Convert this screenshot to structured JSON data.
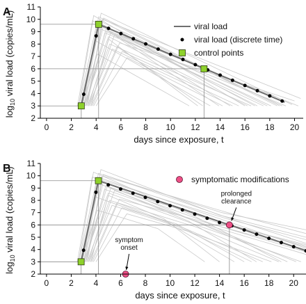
{
  "chart_data": [
    {
      "type": "line",
      "panel_label": "A",
      "xlabel": "days since exposure, t",
      "ylabel_prefix": "log",
      "ylabel_sub": "10",
      "ylabel_rest": " viral load (copies/mL)",
      "xlim": [
        -0.5,
        20.7
      ],
      "ylim": [
        2,
        11
      ],
      "xticks": [
        0,
        2,
        4,
        6,
        8,
        10,
        12,
        14,
        16,
        18,
        20
      ],
      "yticks": [
        2,
        3,
        4,
        5,
        6,
        7,
        8,
        9,
        10,
        11
      ],
      "grid": false,
      "legend": {
        "position": "top-right",
        "entries": [
          {
            "label": "viral load",
            "marker": "line"
          },
          {
            "label": "viral load (discrete time)",
            "marker": "dot"
          },
          {
            "label": "control points",
            "marker": "square"
          }
        ]
      },
      "main_curve": {
        "name": "viral load",
        "x": [
          2.8,
          4.2,
          19.2
        ],
        "y": [
          3.0,
          9.6,
          3.3
        ]
      },
      "discrete_points": {
        "name": "viral load (discrete time)",
        "x": [
          3.0,
          4.0,
          5.0,
          6.0,
          7.0,
          8.0,
          9.0,
          10.0,
          11.0,
          12.0,
          13.0,
          14.0,
          15.0,
          16.0,
          17.0,
          18.0,
          19.0
        ],
        "y": [
          3.94,
          8.66,
          9.27,
          8.85,
          8.43,
          8.01,
          7.59,
          7.17,
          6.75,
          6.33,
          5.91,
          5.49,
          5.07,
          4.65,
          4.23,
          3.81,
          3.39
        ]
      },
      "control_points": {
        "name": "control points",
        "x": [
          2.8,
          4.2,
          12.7
        ],
        "y": [
          3.0,
          9.6,
          6.0
        ]
      },
      "sample_trajectories": [
        {
          "x": [
            2.6,
            4.0,
            17.5
          ],
          "y": [
            3.0,
            9.4,
            3.0
          ]
        },
        {
          "x": [
            3.2,
            4.6,
            18.8
          ],
          "y": [
            3.0,
            10.1,
            3.0
          ]
        },
        {
          "x": [
            3.0,
            5.0,
            16.2
          ],
          "y": [
            3.0,
            8.6,
            3.0
          ]
        },
        {
          "x": [
            2.5,
            3.7,
            14.8
          ],
          "y": [
            3.0,
            9.9,
            3.0
          ]
        },
        {
          "x": [
            3.4,
            5.2,
            20.3
          ],
          "y": [
            3.0,
            9.0,
            3.0
          ]
        },
        {
          "x": [
            3.6,
            5.7,
            12.6
          ],
          "y": [
            3.0,
            7.8,
            3.0
          ]
        },
        {
          "x": [
            2.9,
            4.4,
            19.8
          ],
          "y": [
            3.0,
            10.5,
            3.1
          ]
        },
        {
          "x": [
            3.8,
            6.1,
            15.5
          ],
          "y": [
            3.0,
            7.4,
            3.0
          ]
        },
        {
          "x": [
            3.1,
            4.8,
            18.1
          ],
          "y": [
            3.0,
            9.2,
            3.0
          ]
        },
        {
          "x": [
            2.7,
            3.9,
            13.2
          ],
          "y": [
            3.0,
            8.3,
            3.0
          ]
        },
        {
          "x": [
            3.3,
            4.5,
            20.5
          ],
          "y": [
            3.0,
            10.0,
            3.6
          ]
        },
        {
          "x": [
            3.5,
            5.5,
            17.0
          ],
          "y": [
            3.0,
            8.8,
            3.0
          ]
        },
        {
          "x": [
            2.8,
            4.1,
            11.5
          ],
          "y": [
            3.0,
            7.2,
            3.0
          ]
        },
        {
          "x": [
            3.0,
            4.3,
            16.8
          ],
          "y": [
            3.0,
            9.7,
            3.0
          ]
        },
        {
          "x": [
            4.0,
            6.5,
            14.2
          ],
          "y": [
            3.0,
            6.9,
            3.0
          ]
        },
        {
          "x": [
            3.2,
            4.7,
            19.3
          ],
          "y": [
            3.0,
            8.9,
            3.0
          ]
        },
        {
          "x": [
            2.6,
            3.8,
            16.0
          ],
          "y": [
            3.0,
            10.3,
            3.0
          ]
        },
        {
          "x": [
            3.7,
            5.9,
            20.0
          ],
          "y": [
            3.0,
            8.1,
            3.4
          ]
        },
        {
          "x": [
            3.1,
            4.9,
            13.9
          ],
          "y": [
            3.0,
            9.1,
            3.0
          ]
        },
        {
          "x": [
            2.9,
            4.2,
            18.6
          ],
          "y": [
            3.0,
            10.2,
            3.0
          ]
        },
        {
          "x": [
            3.4,
            5.3,
            15.0
          ],
          "y": [
            3.0,
            7.6,
            3.0
          ]
        },
        {
          "x": [
            3.0,
            4.6,
            17.8
          ],
          "y": [
            3.0,
            9.5,
            3.0
          ]
        },
        {
          "x": [
            3.6,
            5.0,
            12.2
          ],
          "y": [
            3.0,
            8.4,
            3.0
          ]
        },
        {
          "x": [
            2.7,
            4.4,
            19.0
          ],
          "y": [
            3.0,
            9.8,
            3.0
          ]
        },
        {
          "x": [
            3.3,
            5.1,
            16.5
          ],
          "y": [
            3.0,
            8.0,
            3.0
          ]
        }
      ]
    },
    {
      "type": "line",
      "panel_label": "B",
      "xlabel": "days since exposure, t",
      "ylabel_prefix": "log",
      "ylabel_sub": "10",
      "ylabel_rest": " viral load (copies/mL)",
      "xlim": [
        -0.5,
        21
      ],
      "ylim": [
        2,
        11
      ],
      "xticks": [
        0,
        2,
        4,
        6,
        8,
        10,
        12,
        14,
        16,
        18,
        20
      ],
      "yticks": [
        2,
        3,
        4,
        5,
        6,
        7,
        8,
        9,
        10,
        11
      ],
      "grid": false,
      "legend": {
        "position": "top-right",
        "entries": [
          {
            "label": "symptomatic modifications",
            "marker": "circle"
          }
        ]
      },
      "main_curve": {
        "name": "viral load",
        "x": [
          2.8,
          4.2,
          14.8,
          21.0
        ],
        "y": [
          3.0,
          9.6,
          6.0,
          3.9
        ]
      },
      "discrete_points": {
        "name": "viral load (discrete time)",
        "x": [
          3.0,
          4.0,
          5.0,
          6.0,
          7.0,
          8.0,
          9.0,
          10.0,
          11.0,
          12.0,
          13.0,
          14.0,
          15.0,
          16.0,
          17.0,
          18.0,
          19.0,
          20.0,
          21.0
        ],
        "y": [
          3.94,
          8.66,
          9.26,
          8.92,
          8.58,
          8.24,
          7.9,
          7.56,
          7.22,
          6.88,
          6.54,
          6.2,
          5.93,
          5.59,
          5.25,
          4.91,
          4.57,
          4.23,
          3.89
        ]
      },
      "control_points": {
        "name": "control points",
        "x": [
          2.8,
          4.2
        ],
        "y": [
          3.0,
          9.6
        ]
      },
      "symptom_points": {
        "name": "symptomatic modifications",
        "x": [
          6.4,
          14.8
        ],
        "y": [
          2.0,
          6.0
        ]
      },
      "annotations": [
        {
          "lines": [
            "symptom",
            "onset"
          ],
          "x": 6.4,
          "y": 2.0
        },
        {
          "lines": [
            "prolonged",
            "clearance"
          ],
          "x": 14.8,
          "y": 6.0
        }
      ],
      "sample_trajectories": [
        {
          "x": [
            2.6,
            4.0,
            13.0,
            21.0
          ],
          "y": [
            3.0,
            9.4,
            6.6,
            4.2
          ]
        },
        {
          "x": [
            3.2,
            4.6,
            15.5,
            21.0
          ],
          "y": [
            3.0,
            10.1,
            6.3,
            4.5
          ]
        },
        {
          "x": [
            3.0,
            5.0,
            12.4,
            20.6
          ],
          "y": [
            3.0,
            8.6,
            5.9,
            3.0
          ]
        },
        {
          "x": [
            2.5,
            3.7,
            11.8,
            19.5
          ],
          "y": [
            3.0,
            9.9,
            6.4,
            3.0
          ]
        },
        {
          "x": [
            3.4,
            5.2,
            16.2,
            21.0
          ],
          "y": [
            3.0,
            9.0,
            5.6,
            4.3
          ]
        },
        {
          "x": [
            3.6,
            5.7,
            11.0,
            17.5
          ],
          "y": [
            3.0,
            7.8,
            5.8,
            3.0
          ]
        },
        {
          "x": [
            2.9,
            4.4,
            14.0,
            21.0
          ],
          "y": [
            3.0,
            10.5,
            6.8,
            5.0
          ]
        },
        {
          "x": [
            3.8,
            6.1,
            10.5,
            16.0
          ],
          "y": [
            3.0,
            7.4,
            6.1,
            3.0
          ]
        },
        {
          "x": [
            3.1,
            4.8,
            13.6,
            21.0
          ],
          "y": [
            3.0,
            9.2,
            6.0,
            3.8
          ]
        },
        {
          "x": [
            2.7,
            3.9,
            9.8,
            15.2
          ],
          "y": [
            3.0,
            8.3,
            6.2,
            3.0
          ]
        },
        {
          "x": [
            3.3,
            4.5,
            15.0,
            21.0
          ],
          "y": [
            3.0,
            10.0,
            6.9,
            5.3
          ]
        },
        {
          "x": [
            3.5,
            5.5,
            12.8,
            20.2
          ],
          "y": [
            3.0,
            8.8,
            6.0,
            3.0
          ]
        },
        {
          "x": [
            2.8,
            4.1,
            9.0,
            12.8
          ],
          "y": [
            3.0,
            7.2,
            5.7,
            3.0
          ]
        },
        {
          "x": [
            3.0,
            4.3,
            14.6,
            21.0
          ],
          "y": [
            3.0,
            9.7,
            6.5,
            4.8
          ]
        },
        {
          "x": [
            4.0,
            6.5,
            11.4,
            18.2
          ],
          "y": [
            3.0,
            6.9,
            5.5,
            3.0
          ]
        },
        {
          "x": [
            3.2,
            4.7,
            13.3,
            21.0
          ],
          "y": [
            3.0,
            8.9,
            5.9,
            3.6
          ]
        },
        {
          "x": [
            2.6,
            3.8,
            12.0,
            19.0
          ],
          "y": [
            3.0,
            10.3,
            6.7,
            3.0
          ]
        },
        {
          "x": [
            3.7,
            5.9,
            15.8,
            21.0
          ],
          "y": [
            3.0,
            8.1,
            5.4,
            4.0
          ]
        },
        {
          "x": [
            3.1,
            4.9,
            11.5,
            17.0
          ],
          "y": [
            3.0,
            9.1,
            6.3,
            3.0
          ]
        },
        {
          "x": [
            2.9,
            4.2,
            14.2,
            21.0
          ],
          "y": [
            3.0,
            10.2,
            7.0,
            5.6
          ]
        },
        {
          "x": [
            3.4,
            5.3,
            10.8,
            16.6
          ],
          "y": [
            3.0,
            7.6,
            5.8,
            3.0
          ]
        },
        {
          "x": [
            3.0,
            4.6,
            13.8,
            21.0
          ],
          "y": [
            3.0,
            9.5,
            6.2,
            4.4
          ]
        },
        {
          "x": [
            3.6,
            5.0,
            9.5,
            14.0
          ],
          "y": [
            3.0,
            8.4,
            6.5,
            3.0
          ]
        },
        {
          "x": [
            2.7,
            4.4,
            15.2,
            21.0
          ],
          "y": [
            3.0,
            9.8,
            6.1,
            4.1
          ]
        },
        {
          "x": [
            3.3,
            5.1,
            12.2,
            18.8
          ],
          "y": [
            3.0,
            8.0,
            5.8,
            3.0
          ]
        }
      ]
    }
  ],
  "colors": {
    "sample_trajectory": "#c9c9c9",
    "main_curve": "#6f6f6f",
    "discrete_point": "#000000",
    "control_point_fill": "#8ed12c",
    "control_point_stroke": "#2d3a12",
    "symptom_point_fill": "#ee4f86",
    "symptom_point_stroke": "#5a1530",
    "guide_line": "#8a8a8a",
    "axis": "#000000"
  }
}
